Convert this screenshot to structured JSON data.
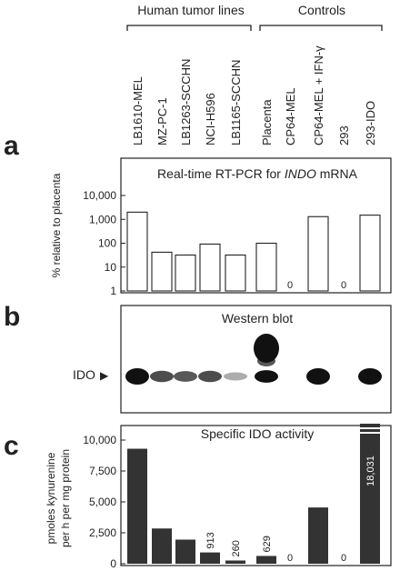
{
  "groups": {
    "tumor": "Human tumor lines",
    "controls": "Controls"
  },
  "lanes": [
    "LB1610-MEL",
    "MZ-PC-1",
    "LB1263-SCCHN",
    "NCI-H596",
    "LB1165-SCCHN",
    "Placenta",
    "CP64-MEL",
    "CP64-MEL + IFN-γ",
    "293",
    "293-IDO"
  ],
  "panel_a": {
    "letter": "a",
    "title_prefix": "Real-time RT-PCR for ",
    "title_italic": "INDO",
    "title_suffix": " mRNA",
    "ylabel": "% relative to placenta"
  },
  "panel_b": {
    "letter": "b",
    "title": "Western blot",
    "marker_label": "IDO",
    "marker_arrow": "▶"
  },
  "panel_c": {
    "letter": "c",
    "title": "Specific IDO activity",
    "ylabel_line1": "pmoles kynurenine",
    "ylabel_line2": "per h per mg protein"
  },
  "chart_data": [
    {
      "type": "bar",
      "title": "Real-time RT-PCR for INDO mRNA",
      "ylabel": "% relative to placenta",
      "yscale": "log",
      "ylim": [
        1,
        10000
      ],
      "yticks": [
        "1",
        "10",
        "100",
        "1,000",
        "10,000"
      ],
      "categories": [
        "LB1610-MEL",
        "MZ-PC-1",
        "LB1263-SCCHN",
        "NCI-H596",
        "LB1165-SCCHN",
        "Placenta",
        "CP64-MEL",
        "CP64-MEL + IFN-γ",
        "293",
        "293-IDO"
      ],
      "values": [
        2000,
        42,
        32,
        92,
        32,
        100,
        0,
        1300,
        0,
        1500
      ],
      "data_labels": [
        "",
        "",
        "",
        "",
        "",
        "",
        "0",
        "",
        "0",
        ""
      ],
      "bar_color": "#ffffff"
    },
    {
      "type": "bar",
      "title": "Specific IDO activity",
      "ylabel": "pmoles kynurenine per h per mg protein",
      "ylim": [
        0,
        10000
      ],
      "yticks": [
        "0",
        "2,500",
        "5,000",
        "7,500",
        "10,000"
      ],
      "categories": [
        "LB1610-MEL",
        "MZ-PC-1",
        "LB1263-SCCHN",
        "NCI-H596",
        "LB1165-SCCHN",
        "Placenta",
        "CP64-MEL",
        "CP64-MEL + IFN-γ",
        "293",
        "293-IDO"
      ],
      "values": [
        9300,
        2850,
        1950,
        913,
        260,
        629,
        0,
        4550,
        0,
        18031
      ],
      "data_labels": [
        "",
        "",
        "",
        "913",
        "260",
        "629",
        "0",
        "",
        "0",
        "18,031"
      ],
      "bar_color": "#333333"
    }
  ],
  "blot": {
    "bands": [
      {
        "lane": 0,
        "intensity": 1.0,
        "height": 1.0
      },
      {
        "lane": 1,
        "intensity": 0.75,
        "height": 0.6
      },
      {
        "lane": 2,
        "intensity": 0.7,
        "height": 0.55
      },
      {
        "lane": 3,
        "intensity": 0.75,
        "height": 0.6
      },
      {
        "lane": 4,
        "intensity": 0.35,
        "height": 0.35
      },
      {
        "lane": 5,
        "intensity": 1.0,
        "height": 0.7
      },
      {
        "lane": 7,
        "intensity": 1.0,
        "height": 1.0
      },
      {
        "lane": 9,
        "intensity": 1.0,
        "height": 1.0
      }
    ]
  }
}
